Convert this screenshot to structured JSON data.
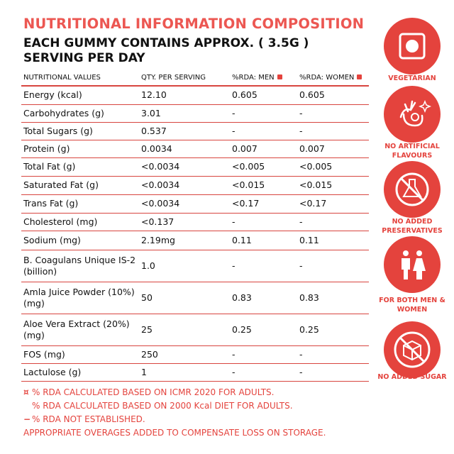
{
  "title": "NUTRITIONAL INFORMATION COMPOSITION",
  "subtitle": "EACH GUMMY CONTAINS APPROX. ( 3.5G ) SERVING PER DAY",
  "table": {
    "header": [
      "NUTRITIONAL VALUES",
      "QTY. PER SERVING",
      "%RDA: MEN",
      "%RDA: WOMEN"
    ],
    "rows": [
      [
        "Energy (kcal)",
        "12.10",
        "0.605",
        "0.605"
      ],
      [
        "Carbohydrates (g)",
        "3.01",
        "-",
        "-"
      ],
      [
        "Total Sugars (g)",
        "0.537",
        "-",
        "-"
      ],
      [
        "Protein (g)",
        "0.0034",
        "0.007",
        "0.007"
      ],
      [
        "Total Fat (g)",
        "<0.0034",
        "<0.005",
        "<0.005"
      ],
      [
        "Saturated Fat (g)",
        "<0.0034",
        "<0.015",
        "<0.015"
      ],
      [
        "Trans Fat (g)",
        "<0.0034",
        "<0.17",
        "<0.17"
      ],
      [
        "Cholesterol (mg)",
        "<0.137",
        "-",
        "-"
      ],
      [
        "Sodium (mg)",
        "2.19mg",
        "0.11",
        "0.11"
      ],
      [
        "B. Coagulans Unique IS-2 (billion)",
        "1.0",
        "-",
        "-"
      ],
      [
        "Amla Juice Powder (10%) (mg)",
        "50",
        "0.83",
        "0.83"
      ],
      [
        "Aloe Vera Extract (20%) (mg)",
        "25",
        "0.25",
        "0.25"
      ],
      [
        "FOS (mg)",
        "250",
        "-",
        "-"
      ],
      [
        "Lactulose (g)",
        "1",
        "-",
        "-"
      ]
    ]
  },
  "footnotes": [
    "% RDA CALCULATED BASED ON ICMR 2020 FOR ADULTS.",
    "% RDA CALCULATED BASED ON 2000 Kcal DIET FOR ADULTS.",
    "% RDA NOT ESTABLISHED.",
    "APPROPRIATE OVERAGES ADDED TO COMPENSATE LOSS ON STORAGE."
  ],
  "badges": [
    "VEGETARIAN",
    "NO ARTIFICIAL FLAVOURS",
    "NO ADDED PRESERVATIVES",
    "FOR BOTH MEN & WOMEN",
    "NO ADDED SUGAR"
  ]
}
